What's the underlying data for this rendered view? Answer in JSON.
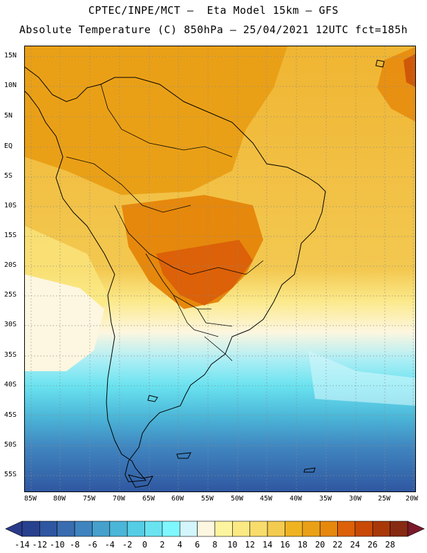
{
  "header": {
    "line1": "CPTEC/INPE/MCT –  Eta Model 15km – GFS",
    "line2": "Absolute Temperature (C) 850hPa – 25/04/2021 12UTC fct=185h"
  },
  "axes": {
    "lat_labels": [
      "15N",
      "10N",
      "5N",
      "EQ",
      "5S",
      "10S",
      "15S",
      "20S",
      "25S",
      "30S",
      "35S",
      "40S",
      "45S",
      "50S",
      "55S"
    ],
    "lon_labels": [
      "85W",
      "80W",
      "75W",
      "70W",
      "65W",
      "60W",
      "55W",
      "50W",
      "45W",
      "40W",
      "35W",
      "30W",
      "25W",
      "20W"
    ]
  },
  "legend": {
    "ticks": [
      "-14",
      "-12",
      "-10",
      "-8",
      "-6",
      "-4",
      "-2",
      "0",
      "2",
      "4",
      "6",
      "8",
      "10",
      "12",
      "14",
      "16",
      "18",
      "20",
      "22",
      "24",
      "26",
      "28"
    ],
    "colors": [
      "#28418f",
      "#2f56a0",
      "#3a6cb0",
      "#3f84bf",
      "#45a0cc",
      "#4bb6d8",
      "#55cde5",
      "#6ae3f0",
      "#7ff7ff",
      "#d2f6fb",
      "#fdf6e0",
      "#fdf4a0",
      "#fbe984",
      "#f8dc6c",
      "#f3cb50",
      "#efb322",
      "#eaa016",
      "#e6880c",
      "#dc6108",
      "#c84a06",
      "#a83807",
      "#872a12"
    ],
    "under_color": "#2a3a8a",
    "over_color": "#7a1a2a"
  }
}
